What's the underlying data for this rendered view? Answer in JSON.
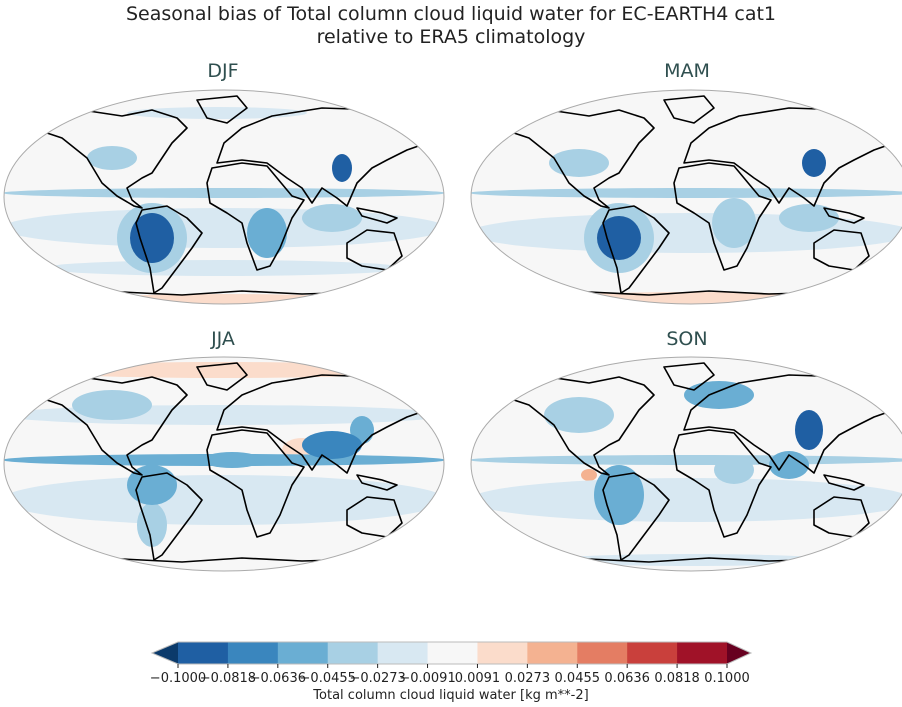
{
  "title_line1": "Seasonal bias of Total column cloud liquid water for EC-EARTH4 cat1",
  "title_line2": "relative to ERA5 climatology",
  "panels": [
    {
      "label": "DJF"
    },
    {
      "label": "MAM"
    },
    {
      "label": "JJA"
    },
    {
      "label": "SON"
    }
  ],
  "colorbar": {
    "label": "Total column cloud liquid water [kg m**-2]",
    "ticks": [
      "−0.1000",
      "−0.0818",
      "−0.0636",
      "−0.0455",
      "−0.0273",
      "−0.0091",
      "0.0091",
      "0.0273",
      "0.0455",
      "0.0636",
      "0.0818",
      "0.1000"
    ],
    "colors": [
      "#1f5fa3",
      "#3a86be",
      "#6aaed3",
      "#a8d0e4",
      "#d8e8f2",
      "#f7f7f7",
      "#fbdccb",
      "#f4b291",
      "#e47d63",
      "#c9403c",
      "#a01228"
    ],
    "under_color": "#0b3a6b",
    "over_color": "#670020",
    "extend": "both"
  },
  "chart_data": {
    "type": "map",
    "projection": "Robinson",
    "variable": "Total column cloud liquid water bias",
    "units": "kg m**-2",
    "range": [
      -0.1,
      0.1
    ],
    "levels": [
      -0.1,
      -0.0818,
      -0.0636,
      -0.0455,
      -0.0273,
      -0.0091,
      0.0091,
      0.0273,
      0.0455,
      0.0636,
      0.0818,
      0.1
    ],
    "panels": [
      "DJF",
      "MAM",
      "JJA",
      "SON"
    ]
  }
}
